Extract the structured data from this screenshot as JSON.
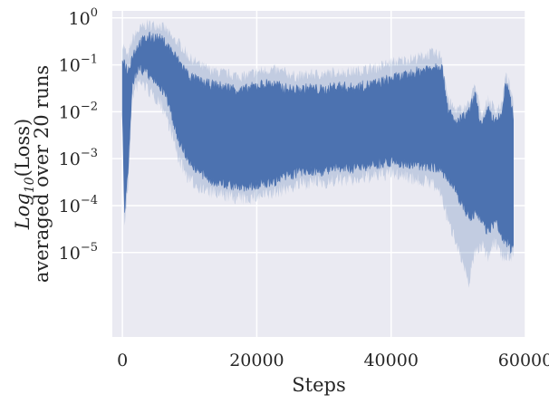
{
  "chart_data": {
    "type": "area",
    "title": "",
    "xlabel": "Steps",
    "ylabel_line1": "Log",
    "ylabel_line1_sub": "10",
    "ylabel_line1_rest": "(Loss)",
    "ylabel_line2": "averaged over 20 runs",
    "xlim": [
      -1500,
      60000
    ],
    "ylim_log10": [
      -6.8,
      0.15
    ],
    "yscale": "log",
    "grid": true,
    "x_ticks": [
      {
        "value": 0,
        "label": "0"
      },
      {
        "value": 20000,
        "label": "20000"
      },
      {
        "value": 40000,
        "label": "40000"
      },
      {
        "value": 60000,
        "label": "60000"
      }
    ],
    "y_ticks": [
      {
        "exp": 0,
        "base": "10",
        "power": "0"
      },
      {
        "exp": -1,
        "base": "10",
        "power": "−1"
      },
      {
        "exp": -2,
        "base": "10",
        "power": "−2"
      },
      {
        "exp": -3,
        "base": "10",
        "power": "−3"
      },
      {
        "exp": -4,
        "base": "10",
        "power": "−4"
      },
      {
        "exp": -5,
        "base": "10",
        "power": "−5"
      }
    ],
    "series": [
      {
        "color": "#4c72b0",
        "x": [
          0,
          300,
          800,
          1500,
          2500,
          3500,
          4500,
          5500,
          6500,
          7500,
          8500,
          10000,
          12000,
          14000,
          16000,
          18000,
          20000,
          22000,
          24000,
          26000,
          28000,
          30000,
          32000,
          34000,
          36000,
          38000,
          40000,
          42000,
          44000,
          46000,
          47500,
          48500,
          49500,
          50500,
          51500,
          52500,
          53500,
          54500,
          55500,
          56500,
          57000,
          57500,
          58200
        ],
        "mean_upper_log": [
          -0.9,
          -1.0,
          -1.2,
          -0.85,
          -0.6,
          -0.5,
          -0.45,
          -0.5,
          -0.6,
          -0.8,
          -1.0,
          -1.3,
          -1.45,
          -1.5,
          -1.55,
          -1.6,
          -1.5,
          -1.45,
          -1.55,
          -1.6,
          -1.55,
          -1.6,
          -1.5,
          -1.55,
          -1.5,
          -1.45,
          -1.35,
          -1.3,
          -1.2,
          -1.1,
          -1.05,
          -2.0,
          -2.3,
          -2.2,
          -2.1,
          -1.7,
          -2.4,
          -2.0,
          -2.3,
          -2.1,
          -1.5,
          -1.6,
          -2.2
        ],
        "mean_lower_log": [
          -1.9,
          -4.1,
          -3.3,
          -1.3,
          -1.0,
          -1.1,
          -1.25,
          -1.35,
          -1.6,
          -2.1,
          -2.6,
          -3.0,
          -3.3,
          -3.45,
          -3.5,
          -3.55,
          -3.5,
          -3.45,
          -3.35,
          -3.25,
          -3.2,
          -3.2,
          -3.15,
          -3.15,
          -3.1,
          -3.05,
          -3.0,
          -3.05,
          -3.1,
          -3.1,
          -3.2,
          -3.4,
          -3.6,
          -3.9,
          -4.2,
          -4.1,
          -4.3,
          -4.5,
          -4.3,
          -4.6,
          -4.7,
          -4.8,
          -4.9
        ],
        "ci_upper_log": [
          -0.6,
          -0.7,
          -0.9,
          -0.5,
          -0.3,
          -0.2,
          -0.2,
          -0.2,
          -0.3,
          -0.5,
          -0.6,
          -0.9,
          -1.1,
          -1.2,
          -1.25,
          -1.3,
          -1.2,
          -1.15,
          -1.2,
          -1.3,
          -1.25,
          -1.25,
          -1.2,
          -1.2,
          -1.15,
          -1.1,
          -1.0,
          -0.95,
          -0.9,
          -0.8,
          -0.85,
          -1.8,
          -2.0,
          -2.0,
          -1.9,
          -1.5,
          -2.1,
          -1.8,
          -2.0,
          -1.9,
          -1.3,
          -1.4,
          -1.9
        ],
        "ci_lower_log": [
          -2.2,
          -4.4,
          -3.6,
          -1.6,
          -1.3,
          -1.4,
          -1.6,
          -1.7,
          -2.0,
          -2.5,
          -3.0,
          -3.4,
          -3.6,
          -3.7,
          -3.75,
          -3.8,
          -3.75,
          -3.7,
          -3.6,
          -3.5,
          -3.45,
          -3.45,
          -3.4,
          -3.4,
          -3.35,
          -3.3,
          -3.25,
          -3.3,
          -3.4,
          -3.45,
          -3.7,
          -4.3,
          -4.6,
          -5.1,
          -5.6,
          -4.9,
          -4.8,
          -5.0,
          -4.7,
          -5.0,
          -5.0,
          -5.0,
          -5.0
        ]
      }
    ]
  }
}
